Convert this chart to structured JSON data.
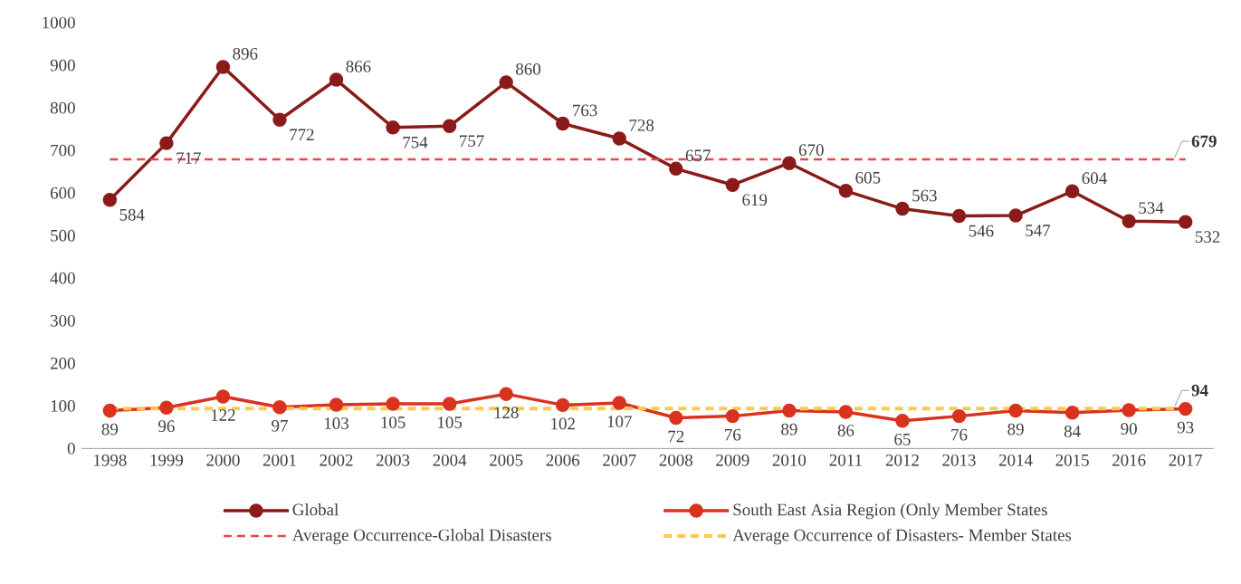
{
  "chart_data": {
    "type": "line",
    "categories": [
      "1998",
      "1999",
      "2000",
      "2001",
      "2002",
      "2003",
      "2004",
      "2005",
      "2006",
      "2007",
      "2008",
      "2009",
      "2010",
      "2011",
      "2012",
      "2013",
      "2014",
      "2015",
      "2016",
      "2017"
    ],
    "series": [
      {
        "name": "Global",
        "color": "#8b1a1a",
        "marker": "circle",
        "values": [
          584,
          717,
          896,
          772,
          866,
          754,
          757,
          860,
          763,
          728,
          657,
          619,
          670,
          605,
          563,
          546,
          547,
          604,
          534,
          532
        ],
        "value_labels": [
          "584",
          "717",
          "896",
          "772",
          "866",
          "754",
          "757",
          "860",
          "763",
          "728",
          "657",
          "619",
          "670",
          "605",
          "563",
          "546",
          "547",
          "604",
          "534",
          "532"
        ]
      },
      {
        "name": "South East Asia Region (Only Member States",
        "color": "#d9321f",
        "marker": "circle",
        "values": [
          89,
          96,
          122,
          97,
          103,
          105,
          105,
          128,
          102,
          107,
          72,
          76,
          89,
          86,
          65,
          76,
          89,
          84,
          90,
          93
        ],
        "value_labels": [
          "89",
          "96",
          "122",
          "97",
          "103",
          "105",
          "105",
          "128",
          "102",
          "107",
          "72",
          "76",
          "89",
          "86",
          "65",
          "76",
          "89",
          "84",
          "90",
          "93"
        ]
      },
      {
        "name": "Average Occurrence-Global Disasters",
        "color": "#e8474a",
        "line_style": "dashed",
        "values": [
          679,
          679,
          679,
          679,
          679,
          679,
          679,
          679,
          679,
          679,
          679,
          679,
          679,
          679,
          679,
          679,
          679,
          679,
          679,
          679
        ]
      },
      {
        "name": "Average Occurrence of Disasters- Member States",
        "color": "#ffc84a",
        "line_style": "dashed",
        "values": [
          94,
          94,
          94,
          94,
          94,
          94,
          94,
          94,
          94,
          94,
          94,
          94,
          94,
          94,
          94,
          94,
          94,
          94,
          94,
          94
        ]
      }
    ],
    "annotations": [
      {
        "text": "679",
        "x": "2017",
        "y": 679
      },
      {
        "text": "94",
        "x": "2017",
        "y": 94
      }
    ],
    "ylim": [
      0,
      1000
    ],
    "yticks": [
      0,
      100,
      200,
      300,
      400,
      500,
      600,
      700,
      800,
      900,
      1000
    ],
    "grid": false,
    "legend": "bottom"
  }
}
